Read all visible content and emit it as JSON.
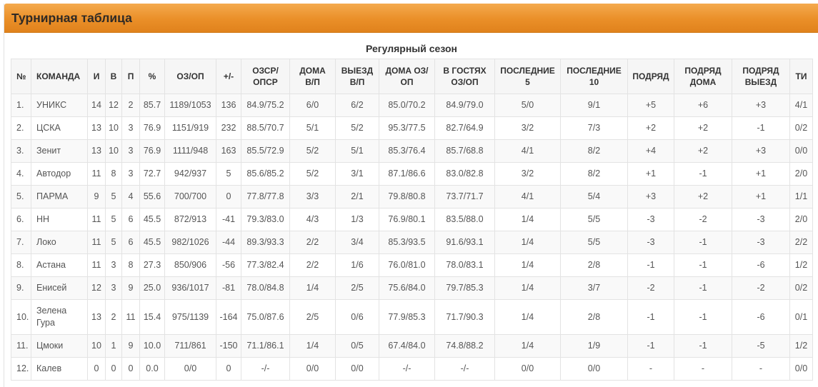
{
  "theme": {
    "accent": "#ea8f28"
  },
  "header": {
    "title": "Турнирная таблица"
  },
  "standings": {
    "caption": "Регулярный сезон",
    "columns": [
      "№",
      "КОМАНДА",
      "И",
      "В",
      "П",
      "%",
      "ОЗ/ОП",
      "+/-",
      "ОЗСР/\nОПСР",
      "ДОМА\nВ/П",
      "ВЫЕЗД\nВ/П",
      "ДОМА ОЗ/\nОП",
      "В ГОСТЯХ\nОЗ/ОП",
      "ПОСЛЕДНИЕ\n5",
      "ПОСЛЕДНИЕ\n10",
      "ПОДРЯД",
      "ПОДРЯД\nДОМА",
      "ПОДРЯД\nВЫЕЗД",
      "ТИ"
    ],
    "rows": [
      [
        "1.",
        "УНИКС",
        "14",
        "12",
        "2",
        "85.7",
        "1189/1053",
        "136",
        "84.9/75.2",
        "6/0",
        "6/2",
        "85.0/70.2",
        "84.9/79.0",
        "5/0",
        "9/1",
        "+5",
        "+6",
        "+3",
        "4/1"
      ],
      [
        "2.",
        "ЦСКА",
        "13",
        "10",
        "3",
        "76.9",
        "1151/919",
        "232",
        "88.5/70.7",
        "5/1",
        "5/2",
        "95.3/77.5",
        "82.7/64.9",
        "3/2",
        "7/3",
        "+2",
        "+2",
        "-1",
        "0/2"
      ],
      [
        "3.",
        "Зенит",
        "13",
        "10",
        "3",
        "76.9",
        "1111/948",
        "163",
        "85.5/72.9",
        "5/2",
        "5/1",
        "85.3/76.4",
        "85.7/68.8",
        "4/1",
        "8/2",
        "+4",
        "+2",
        "+3",
        "0/0"
      ],
      [
        "4.",
        "Автодор",
        "11",
        "8",
        "3",
        "72.7",
        "942/937",
        "5",
        "85.6/85.2",
        "5/2",
        "3/1",
        "87.1/86.6",
        "83.0/82.8",
        "3/2",
        "8/2",
        "+1",
        "-1",
        "+1",
        "2/0"
      ],
      [
        "5.",
        "ПАРМА",
        "9",
        "5",
        "4",
        "55.6",
        "700/700",
        "0",
        "77.8/77.8",
        "3/3",
        "2/1",
        "79.8/80.8",
        "73.7/71.7",
        "4/1",
        "5/4",
        "+3",
        "+2",
        "+1",
        "1/1"
      ],
      [
        "6.",
        "НН",
        "11",
        "5",
        "6",
        "45.5",
        "872/913",
        "-41",
        "79.3/83.0",
        "4/3",
        "1/3",
        "76.9/80.1",
        "83.5/88.0",
        "1/4",
        "5/5",
        "-3",
        "-2",
        "-3",
        "2/0"
      ],
      [
        "7.",
        "Локо",
        "11",
        "5",
        "6",
        "45.5",
        "982/1026",
        "-44",
        "89.3/93.3",
        "2/2",
        "3/4",
        "85.3/93.5",
        "91.6/93.1",
        "1/4",
        "5/5",
        "-3",
        "-1",
        "-3",
        "2/2"
      ],
      [
        "8.",
        "Астана",
        "11",
        "3",
        "8",
        "27.3",
        "850/906",
        "-56",
        "77.3/82.4",
        "2/2",
        "1/6",
        "76.0/81.0",
        "78.0/83.1",
        "1/4",
        "2/8",
        "-1",
        "-1",
        "-6",
        "1/2"
      ],
      [
        "9.",
        "Енисей",
        "12",
        "3",
        "9",
        "25.0",
        "936/1017",
        "-81",
        "78.0/84.8",
        "1/4",
        "2/5",
        "75.6/84.0",
        "79.7/85.3",
        "1/4",
        "3/7",
        "-2",
        "-1",
        "-2",
        "0/2"
      ],
      [
        "10.",
        "Зелена Гура",
        "13",
        "2",
        "11",
        "15.4",
        "975/1139",
        "-164",
        "75.0/87.6",
        "2/5",
        "0/6",
        "77.9/85.3",
        "71.7/90.3",
        "1/4",
        "2/8",
        "-1",
        "-1",
        "-6",
        "0/1"
      ],
      [
        "11.",
        "Цмоки",
        "10",
        "1",
        "9",
        "10.0",
        "711/861",
        "-150",
        "71.1/86.1",
        "1/4",
        "0/5",
        "67.4/84.0",
        "74.8/88.2",
        "1/4",
        "1/9",
        "-1",
        "-1",
        "-5",
        "1/2"
      ],
      [
        "12.",
        "Калев",
        "0",
        "0",
        "0",
        "0.0",
        "0/0",
        "0",
        "-/-",
        "0/0",
        "0/0",
        "-/-",
        "-/-",
        "0/0",
        "0/0",
        "-",
        "-",
        "-",
        "0/0"
      ]
    ]
  }
}
